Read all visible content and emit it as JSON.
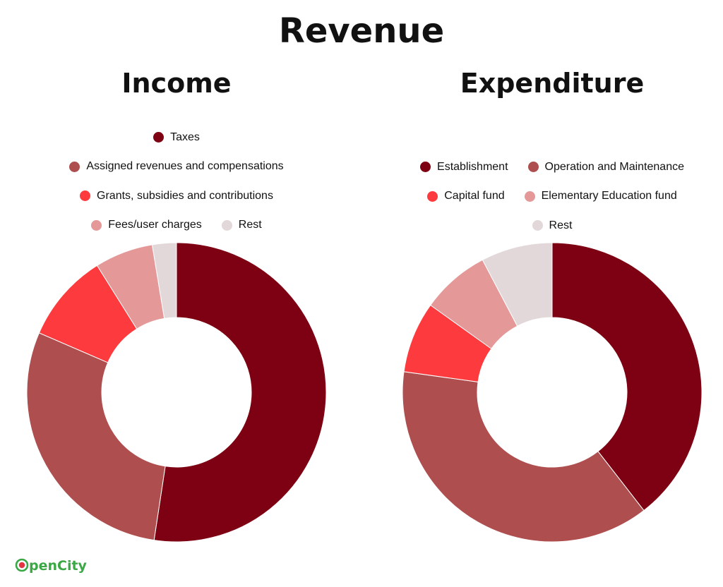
{
  "title": "Revenue",
  "brand": {
    "logo_text": "OpenCity"
  },
  "chart_data": [
    {
      "type": "pie",
      "title": "Income",
      "legend_rows": [
        [
          0
        ],
        [
          1
        ],
        [
          2
        ],
        [
          3,
          4
        ]
      ],
      "slices": [
        {
          "label": "Taxes",
          "value": 52.4,
          "color": "#7d0112"
        },
        {
          "label": "Assigned revenues and compensations",
          "value": 29.1,
          "color": "#ae4e4e"
        },
        {
          "label": "Grants, subsidies and contributions",
          "value": 9.6,
          "color": "#fd3b3e"
        },
        {
          "label": "Fees/user charges",
          "value": 6.3,
          "color": "#e49898"
        },
        {
          "label": "Rest",
          "value": 2.6,
          "color": "#e3d8d9"
        }
      ]
    },
    {
      "type": "pie",
      "title": "Expenditure",
      "legend_rows": [
        [
          0,
          1
        ],
        [
          2,
          3
        ],
        [
          4
        ]
      ],
      "slices": [
        {
          "label": "Establishment",
          "value": 39.5,
          "color": "#7d0112"
        },
        {
          "label": "Operation and Maintenance",
          "value": 37.7,
          "color": "#ae4e4e"
        },
        {
          "label": "Capital fund",
          "value": 7.7,
          "color": "#fd3b3e"
        },
        {
          "label": "Elementary Education fund",
          "value": 7.4,
          "color": "#e49898"
        },
        {
          "label": "Rest",
          "value": 7.7,
          "color": "#e3d8d9"
        }
      ]
    }
  ]
}
